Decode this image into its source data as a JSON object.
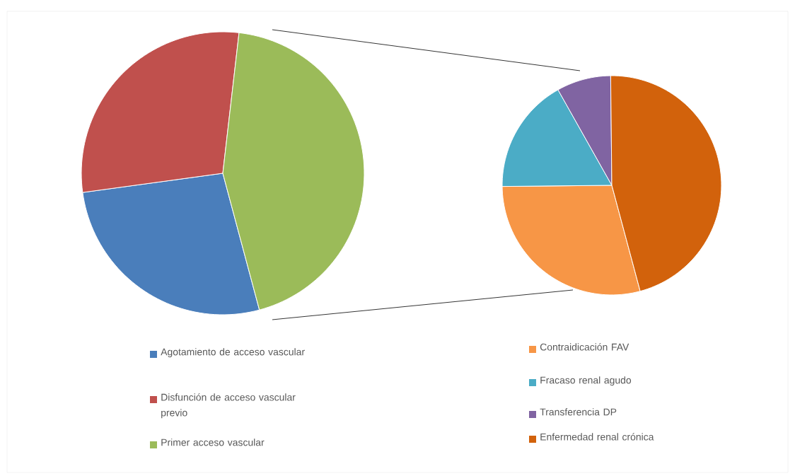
{
  "chart_data": [
    {
      "type": "pie",
      "categories": [
        "Agotamiento de acceso vascular",
        "Disfunción de acceso vascular previo",
        "Primer acceso vascular"
      ],
      "values": [
        27,
        29,
        44
      ],
      "colors": [
        "#4a7ebb",
        "#c0504d",
        "#9bbb59"
      ],
      "legend": "bottom"
    },
    {
      "type": "pie",
      "categories": [
        "Contraidicación FAV",
        "Fracaso renal agudo",
        "Transferencia DP",
        "Enfermedad renal crónica"
      ],
      "values": [
        29,
        17,
        8,
        46
      ],
      "colors": [
        "#f79646",
        "#4bacc6",
        "#8064a2",
        "#d2620c"
      ],
      "legend": "bottom"
    }
  ]
}
